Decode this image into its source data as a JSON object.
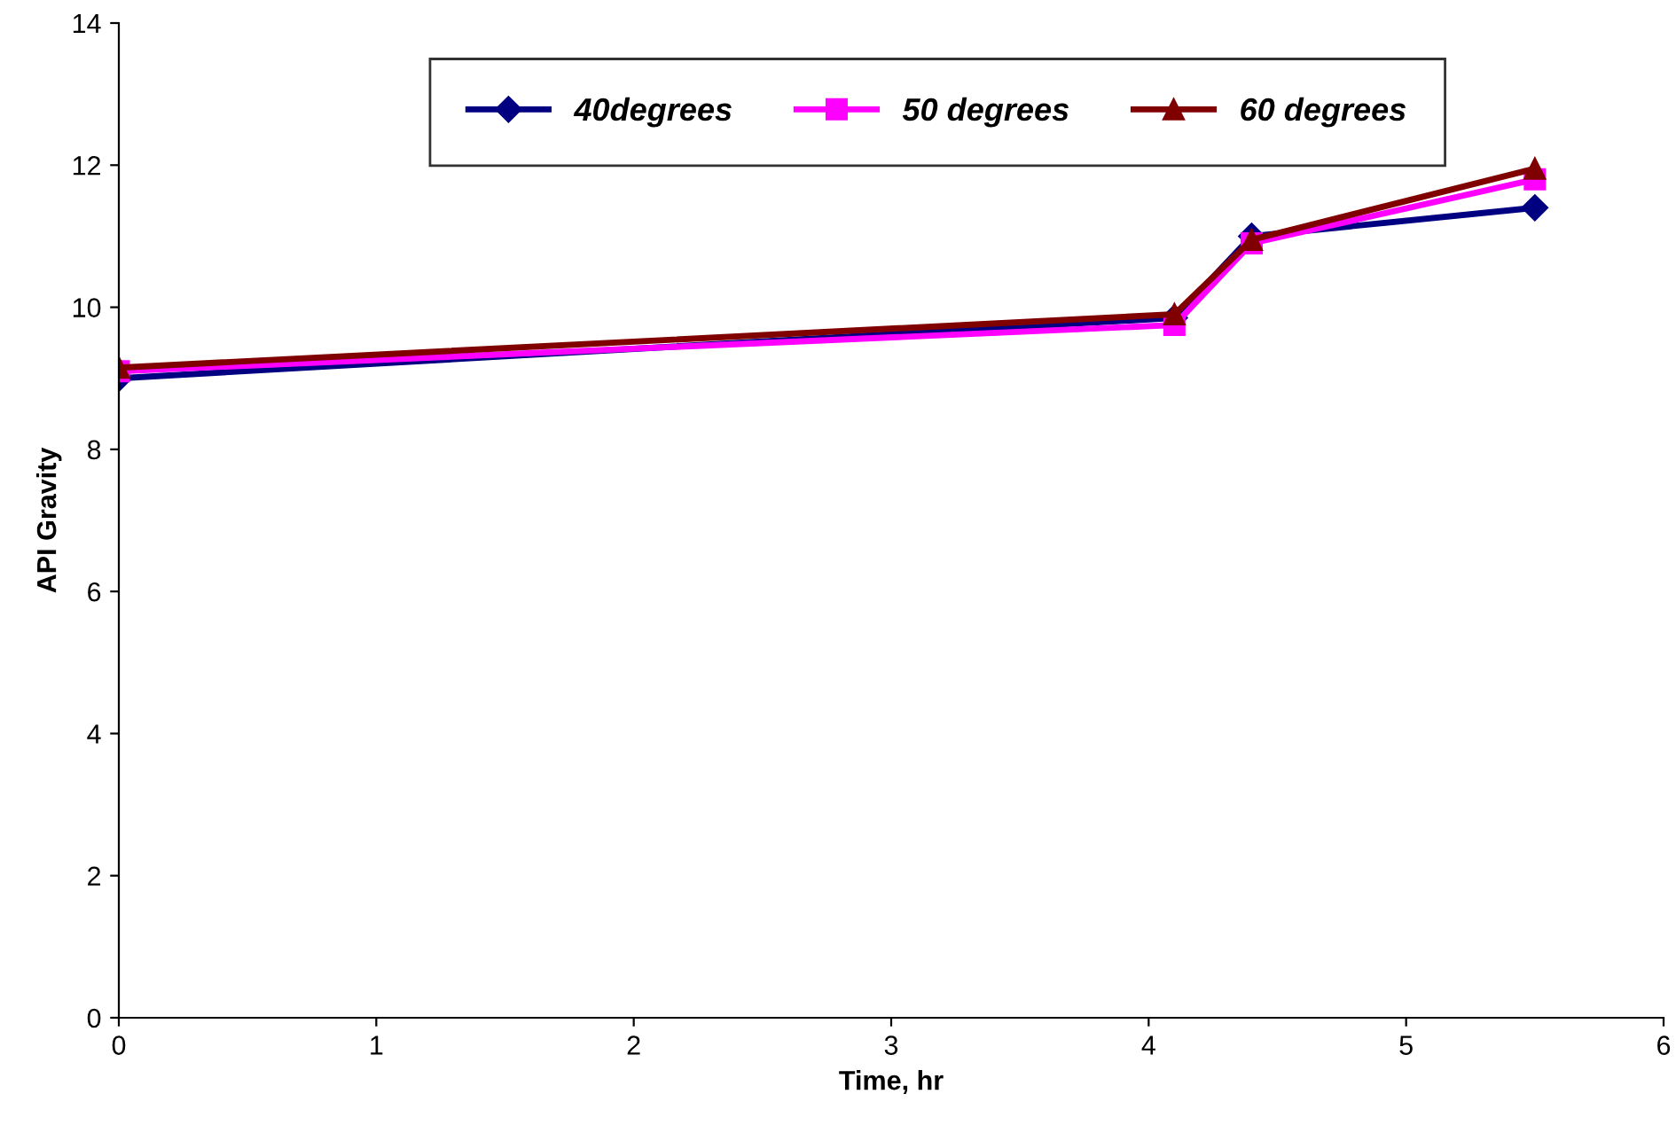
{
  "chart_data": {
    "type": "line",
    "xlabel": "Time, hr",
    "ylabel": "API Gravity",
    "x": [
      0,
      4.1,
      4.4,
      5.5
    ],
    "xlim": [
      0,
      6
    ],
    "xticks": [
      0,
      1,
      2,
      3,
      4,
      5,
      6
    ],
    "ylim": [
      0,
      14
    ],
    "yticks": [
      0,
      2,
      4,
      6,
      8,
      10,
      12,
      14
    ],
    "grid": false,
    "legend": "top",
    "series": [
      {
        "name": "40degrees",
        "color": "#000080",
        "marker": "diamond",
        "values": [
          9.0,
          9.85,
          11.0,
          11.4
        ]
      },
      {
        "name": "50 degrees",
        "color": "#ff00ff",
        "marker": "square",
        "values": [
          9.1,
          9.75,
          10.9,
          11.8
        ]
      },
      {
        "name": "60 degrees",
        "color": "#800000",
        "marker": "triangle",
        "values": [
          9.15,
          9.9,
          10.95,
          11.95
        ]
      }
    ]
  }
}
